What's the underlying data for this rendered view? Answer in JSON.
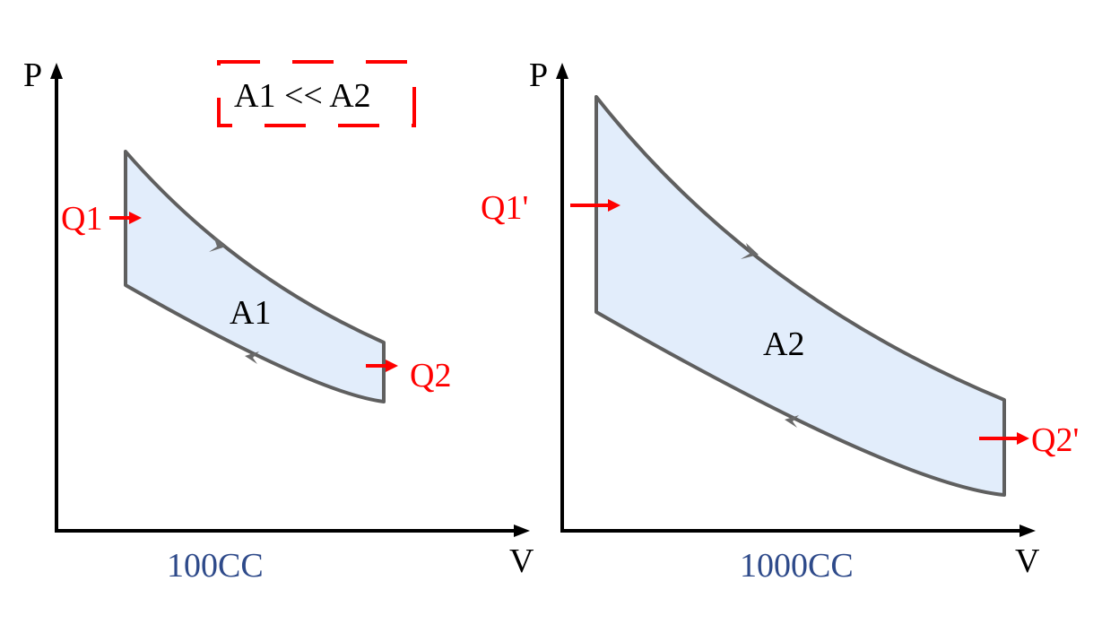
{
  "colors": {
    "axis": "#000000",
    "cycle_stroke": "#5f5f5f",
    "cycle_fill": "#e2edfb",
    "heat_flow": "#ff0000",
    "caption": "#2e4a8a"
  },
  "comparison": {
    "text": "A1 << A2"
  },
  "panels": [
    {
      "y_axis_label": "P",
      "x_axis_label": "V",
      "caption": "100CC",
      "area_label": "A1",
      "heat_in_label": "Q1",
      "heat_out_label": "Q2"
    },
    {
      "y_axis_label": "P",
      "x_axis_label": "V",
      "caption": "1000CC",
      "area_label": "A2",
      "heat_in_label": "Q1'",
      "heat_out_label": "Q2'"
    }
  ]
}
